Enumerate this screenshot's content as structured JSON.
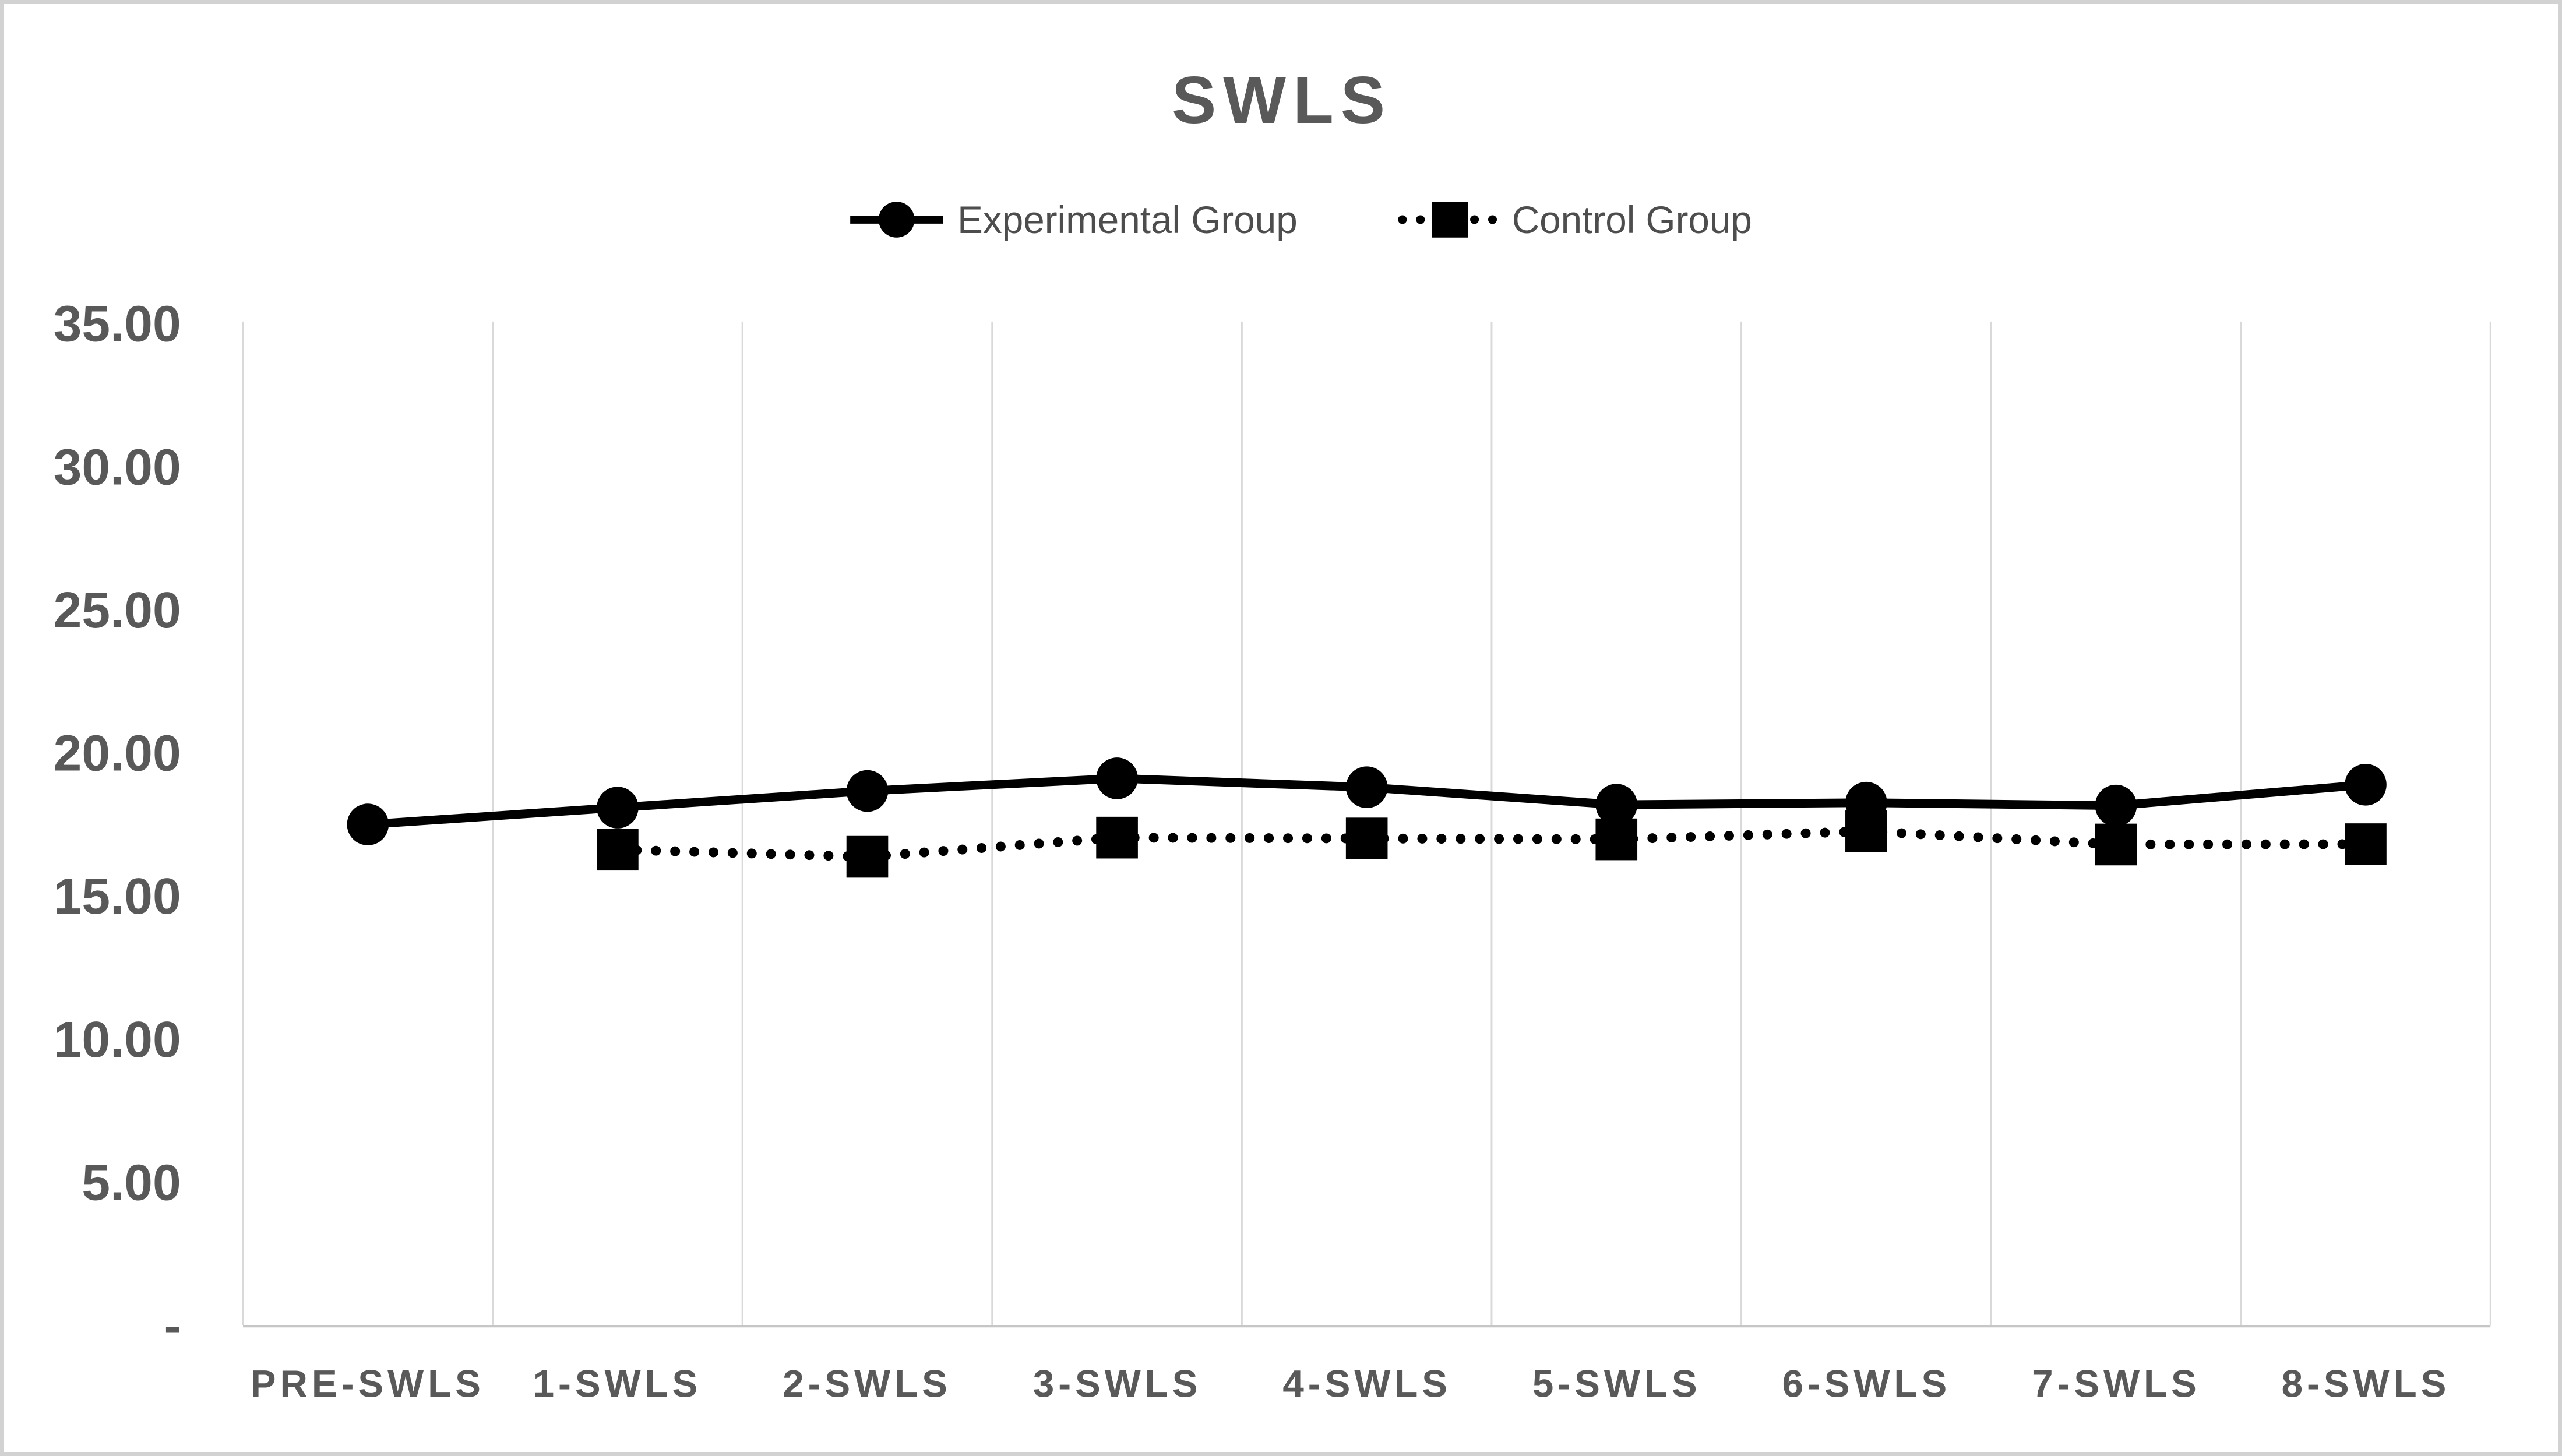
{
  "chart_data": {
    "type": "line",
    "title": "SWLS",
    "categories": [
      "PRE-SWLS",
      "1-SWLS",
      "2-SWLS",
      "3-SWLS",
      "4-SWLS",
      "5-SWLS",
      "6-SWLS",
      "7-SWLS",
      "8-SWLS"
    ],
    "series": [
      {
        "name": "Experimental Group",
        "marker": "circle",
        "line_style": "solid",
        "color": "#000000",
        "values": [
          17.49,
          18.08,
          18.66,
          19.1,
          18.79,
          18.18,
          18.25,
          18.15,
          18.88
        ]
      },
      {
        "name": "Control Group",
        "marker": "square",
        "line_style": "dotted",
        "color": "#000000",
        "values": [
          null,
          16.61,
          16.36,
          17.03,
          17.0,
          16.97,
          17.25,
          16.79,
          16.8
        ]
      }
    ],
    "xlabel": "",
    "ylabel": "",
    "ylim": [
      0,
      35
    ],
    "y_ticks": {
      "labels": [
        "35.00",
        "30.00",
        "25.00",
        "20.00",
        "15.00",
        "10.00",
        "5.00",
        "-"
      ],
      "values": [
        35,
        30,
        25,
        20,
        15,
        10,
        5,
        0
      ]
    },
    "grid": "vertical-only",
    "legend_position": "top-center",
    "colors": {
      "text": "#595959",
      "gridline": "#d9d9d9",
      "axis_line": "#c6c6c6",
      "series": "#000000",
      "border": "#d2d2d2"
    }
  }
}
